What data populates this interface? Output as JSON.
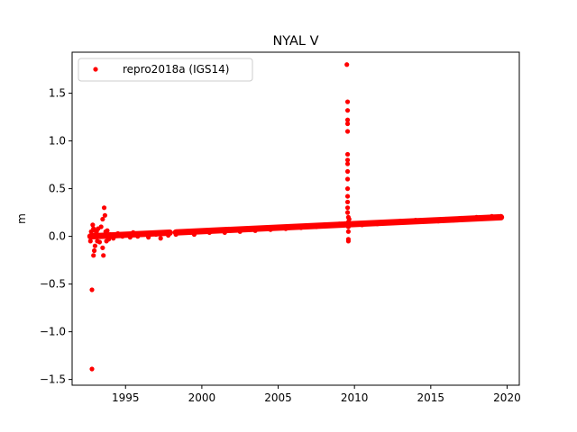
{
  "chart_data": {
    "type": "scatter",
    "title": "NYAL V",
    "xlabel": "",
    "ylabel": "m",
    "xlim": [
      1991.5,
      2020.8
    ],
    "ylim": [
      -1.56,
      1.93
    ],
    "xticks": [
      1995,
      2000,
      2005,
      2010,
      2015,
      2020
    ],
    "yticks": [
      -1.5,
      -1.0,
      -0.5,
      0.0,
      0.5,
      1.0,
      1.5
    ],
    "ytick_labels": [
      "−1.5",
      "−1.0",
      "−0.5",
      "0.0",
      "0.5",
      "1.0",
      "1.5"
    ],
    "grid": false,
    "legend": {
      "position": "top-left",
      "entries": [
        "repro2018a (IGS14)"
      ]
    },
    "series": [
      {
        "name": "repro2018a (IGS14)",
        "color": "#ff0000",
        "marker": "circle",
        "trend": {
          "x_start": 1992.7,
          "x_end": 2019.6,
          "y_start": 0.0,
          "y_end": 0.2
        },
        "gaps": [
          [
            1997.9,
            1998.3
          ]
        ],
        "x": [
          1992.7,
          1992.75,
          1992.8,
          1992.8,
          1992.85,
          1992.9,
          1992.9,
          1992.95,
          1993.0,
          1993.0,
          1993.1,
          1993.15,
          1993.2,
          1993.3,
          1993.4,
          1993.5,
          1993.5,
          1993.55,
          1993.6,
          1993.65,
          1993.7,
          1993.75,
          1993.8,
          1993.9,
          1994.0,
          1994.2,
          1994.5,
          1994.8,
          1995.0,
          1995.3,
          1995.5,
          1995.8,
          1996.0,
          1996.3,
          1996.5,
          1996.8,
          1997.0,
          1997.3,
          1997.5,
          1997.8,
          1998.3,
          1998.6,
          1999.0,
          1999.5,
          2000.0,
          2000.5,
          2001.0,
          2001.5,
          2002.0,
          2002.5,
          2003.0,
          2003.5,
          2004.0,
          2004.5,
          2005.0,
          2005.5,
          2006.0,
          2006.5,
          2007.0,
          2007.5,
          2008.0,
          2008.5,
          2009.0,
          2009.5,
          2009.55,
          2009.55,
          2009.55,
          2009.55,
          2009.55,
          2009.55,
          2009.55,
          2009.55,
          2009.55,
          2009.55,
          2009.55,
          2009.55,
          2009.55,
          2009.55,
          2009.55,
          2009.6,
          2009.6,
          2009.6,
          2009.6,
          2009.6,
          2009.6,
          2009.65,
          2010.0,
          2010.5,
          2011.0,
          2011.5,
          2012.0,
          2012.5,
          2013.0,
          2013.5,
          2014.0,
          2014.5,
          2015.0,
          2015.5,
          2016.0,
          2016.5,
          2017.0,
          2017.5,
          2018.0,
          2018.5,
          2019.0,
          2019.3,
          2019.6
        ],
        "y": [
          -0.05,
          0.05,
          -1.39,
          -0.56,
          0.12,
          -0.2,
          0.08,
          -0.15,
          -0.1,
          0.06,
          0.05,
          -0.05,
          0.08,
          -0.06,
          0.1,
          0.18,
          -0.12,
          -0.2,
          0.3,
          0.22,
          0.05,
          -0.05,
          0.06,
          -0.03,
          0.02,
          -0.02,
          0.03,
          0.0,
          0.02,
          -0.01,
          0.04,
          0.0,
          0.02,
          0.03,
          -0.01,
          0.03,
          0.02,
          -0.02,
          0.04,
          0.01,
          0.02,
          0.05,
          0.04,
          0.02,
          0.05,
          0.04,
          0.06,
          0.04,
          0.07,
          0.05,
          0.08,
          0.06,
          0.08,
          0.07,
          0.09,
          0.08,
          0.1,
          0.09,
          0.11,
          0.1,
          0.12,
          0.11,
          0.13,
          1.8,
          1.41,
          1.32,
          1.22,
          1.18,
          1.1,
          0.86,
          0.8,
          0.76,
          0.68,
          0.6,
          0.5,
          0.42,
          0.36,
          0.3,
          0.25,
          0.2,
          0.15,
          0.1,
          0.05,
          -0.03,
          -0.05,
          0.18,
          0.13,
          0.12,
          0.14,
          0.13,
          0.15,
          0.14,
          0.16,
          0.15,
          0.17,
          0.16,
          0.17,
          0.16,
          0.18,
          0.17,
          0.19,
          0.18,
          0.2,
          0.19,
          0.21,
          0.2,
          0.21
        ]
      }
    ]
  }
}
